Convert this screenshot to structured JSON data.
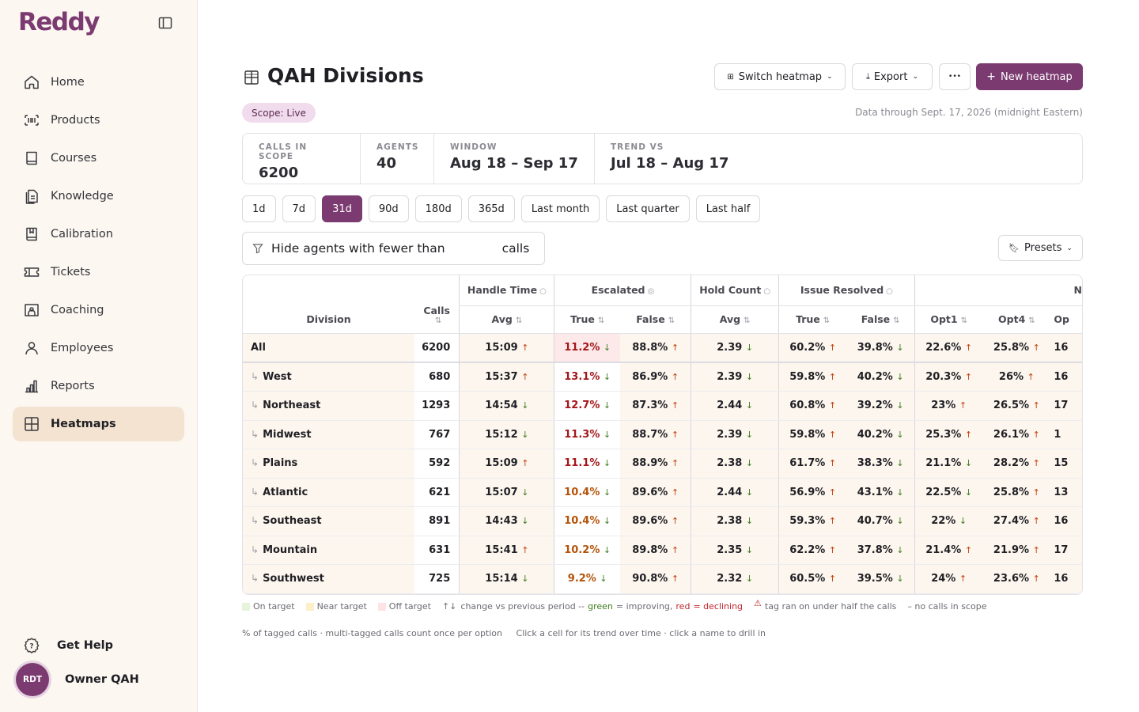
{
  "app": {
    "logo": "Reddy"
  },
  "sidebar": {
    "items": [
      {
        "label": "Home",
        "icon": "home-icon"
      },
      {
        "label": "Products",
        "icon": "barcode-icon"
      },
      {
        "label": "Courses",
        "icon": "book-icon"
      },
      {
        "label": "Knowledge",
        "icon": "document-icon"
      },
      {
        "label": "Calibration",
        "icon": "bookmark-book-icon"
      },
      {
        "label": "Tickets",
        "icon": "ticket-icon"
      },
      {
        "label": "Coaching",
        "icon": "coaching-icon"
      },
      {
        "label": "Employees",
        "icon": "person-icon"
      },
      {
        "label": "Reports",
        "icon": "bar-chart-icon"
      },
      {
        "label": "Heatmaps",
        "icon": "grid-icon",
        "active": true
      }
    ],
    "help_label": "Get Help",
    "user": {
      "initials": "RDT",
      "name": "Owner QAH"
    }
  },
  "header": {
    "title": "QAH Divisions",
    "switch_label": "Switch heatmap",
    "export_label": "Export",
    "more_label": "•••",
    "new_label": "New heatmap"
  },
  "scope": {
    "badge": "Scope: Live",
    "data_through": "Data through Sept. 17, 2026 (midnight Eastern)"
  },
  "stats": {
    "calls": {
      "label": "CALLS IN SCOPE",
      "value": "6200"
    },
    "agents": {
      "label": "AGENTS",
      "value": "40"
    },
    "window": {
      "label": "WINDOW",
      "value": "Aug 18 – Sep 17"
    },
    "trend": {
      "label": "TREND VS",
      "value": "Jul 18 – Aug 17"
    }
  },
  "ranges": [
    "1d",
    "7d",
    "31d",
    "90d",
    "180d",
    "365d",
    "Last month",
    "Last quarter",
    "Last half"
  ],
  "active_range": "31d",
  "filter": {
    "prefix": "Hide agents with fewer than",
    "suffix": "calls",
    "value": ""
  },
  "presets_label": "Presets",
  "table": {
    "division_header": "Division",
    "calls_header": "Calls",
    "groups": {
      "handle": "Handle Time",
      "escalated": "Escalated",
      "hold": "Hold Count",
      "issue": "Issue Resolved",
      "next": "N"
    },
    "sub": {
      "avg": "Avg",
      "true": "True",
      "false": "False",
      "opt1": "Opt1",
      "opt4": "Opt4",
      "opt_next": "Op"
    },
    "rows": [
      {
        "name": "All",
        "calls": "6200",
        "handle": "15:09",
        "hd": "up",
        "esc_t": "11.2%",
        "etd": "down",
        "esc_f": "88.8%",
        "efd": "up",
        "hold": "2.39",
        "hod": "down",
        "ir_t": "60.2%",
        "itd": "up",
        "ir_f": "39.8%",
        "ifd": "down",
        "opt1": "22.6%",
        "o1d": "up",
        "opt4": "25.8%",
        "o4d": "up",
        "next": "16"
      },
      {
        "name": "West",
        "calls": "680",
        "handle": "15:37",
        "hd": "up",
        "esc_t": "13.1%",
        "etd": "down",
        "esc_f": "86.9%",
        "efd": "up",
        "hold": "2.39",
        "hod": "down",
        "ir_t": "59.8%",
        "itd": "up",
        "ir_f": "40.2%",
        "ifd": "down",
        "opt1": "20.3%",
        "o1d": "up",
        "opt4": "26%",
        "o4d": "up",
        "next": "16"
      },
      {
        "name": "Northeast",
        "calls": "1293",
        "handle": "14:54",
        "hd": "down",
        "esc_t": "12.7%",
        "etd": "down",
        "esc_f": "87.3%",
        "efd": "up",
        "hold": "2.44",
        "hod": "down",
        "ir_t": "60.8%",
        "itd": "up",
        "ir_f": "39.2%",
        "ifd": "down",
        "opt1": "23%",
        "o1d": "up",
        "opt4": "26.5%",
        "o4d": "up",
        "next": "17"
      },
      {
        "name": "Midwest",
        "calls": "767",
        "handle": "15:12",
        "hd": "down",
        "esc_t": "11.3%",
        "etd": "down",
        "esc_f": "88.7%",
        "efd": "up",
        "hold": "2.39",
        "hod": "down",
        "ir_t": "59.8%",
        "itd": "up",
        "ir_f": "40.2%",
        "ifd": "down",
        "opt1": "25.3%",
        "o1d": "up",
        "opt4": "26.1%",
        "o4d": "up",
        "next": "1"
      },
      {
        "name": "Plains",
        "calls": "592",
        "handle": "15:09",
        "hd": "up",
        "esc_t": "11.1%",
        "etd": "down",
        "esc_f": "88.9%",
        "efd": "up",
        "hold": "2.38",
        "hod": "down",
        "ir_t": "61.7%",
        "itd": "up",
        "ir_f": "38.3%",
        "ifd": "down",
        "opt1": "21.1%",
        "o1d": "down",
        "opt4": "28.2%",
        "o4d": "up",
        "next": "15"
      },
      {
        "name": "Atlantic",
        "calls": "621",
        "handle": "15:07",
        "hd": "down",
        "esc_t": "10.4%",
        "etd": "down",
        "esc_f": "89.6%",
        "efd": "up",
        "hold": "2.44",
        "hod": "down",
        "ir_t": "56.9%",
        "itd": "up",
        "ir_f": "43.1%",
        "ifd": "down",
        "opt1": "22.5%",
        "o1d": "down",
        "opt4": "25.8%",
        "o4d": "up",
        "next": "13"
      },
      {
        "name": "Southeast",
        "calls": "891",
        "handle": "14:43",
        "hd": "down",
        "esc_t": "10.4%",
        "etd": "down",
        "esc_f": "89.6%",
        "efd": "up",
        "hold": "2.38",
        "hod": "down",
        "ir_t": "59.3%",
        "itd": "up",
        "ir_f": "40.7%",
        "ifd": "down",
        "opt1": "22%",
        "o1d": "down",
        "opt4": "27.4%",
        "o4d": "up",
        "next": "16"
      },
      {
        "name": "Mountain",
        "calls": "631",
        "handle": "15:41",
        "hd": "up",
        "esc_t": "10.2%",
        "etd": "down",
        "esc_f": "89.8%",
        "efd": "up",
        "hold": "2.35",
        "hod": "down",
        "ir_t": "62.2%",
        "itd": "up",
        "ir_f": "37.8%",
        "ifd": "down",
        "opt1": "21.4%",
        "o1d": "up",
        "opt4": "21.9%",
        "o4d": "up",
        "next": "17"
      },
      {
        "name": "Southwest",
        "calls": "725",
        "handle": "15:14",
        "hd": "down",
        "esc_t": "9.2%",
        "etd": "down",
        "esc_f": "90.8%",
        "efd": "up",
        "hold": "2.32",
        "hod": "down",
        "ir_t": "60.5%",
        "itd": "up",
        "ir_f": "39.5%",
        "ifd": "down",
        "opt1": "24%",
        "o1d": "up",
        "opt4": "23.6%",
        "o4d": "up",
        "next": "16"
      }
    ]
  },
  "legend": {
    "on_target": "On target",
    "near_target": "Near target",
    "off_target": "Off target",
    "arrows": "↑↓",
    "change": "change vs previous period --",
    "green_word": "green",
    "eq1": "= improving,",
    "red_word": "red",
    "eq2": "= declining",
    "warn_icon": "⚠",
    "warn_text": "tag ran on under half the calls",
    "dash_text": "– no calls in scope",
    "colors": {
      "on": "#e6f4dc",
      "near": "#fcefc9",
      "off": "#fde3e4"
    }
  },
  "footnote": {
    "left": "% of tagged calls · multi-tagged calls count once per option",
    "right": "Click a cell for its trend over time · click a name to drill in"
  }
}
